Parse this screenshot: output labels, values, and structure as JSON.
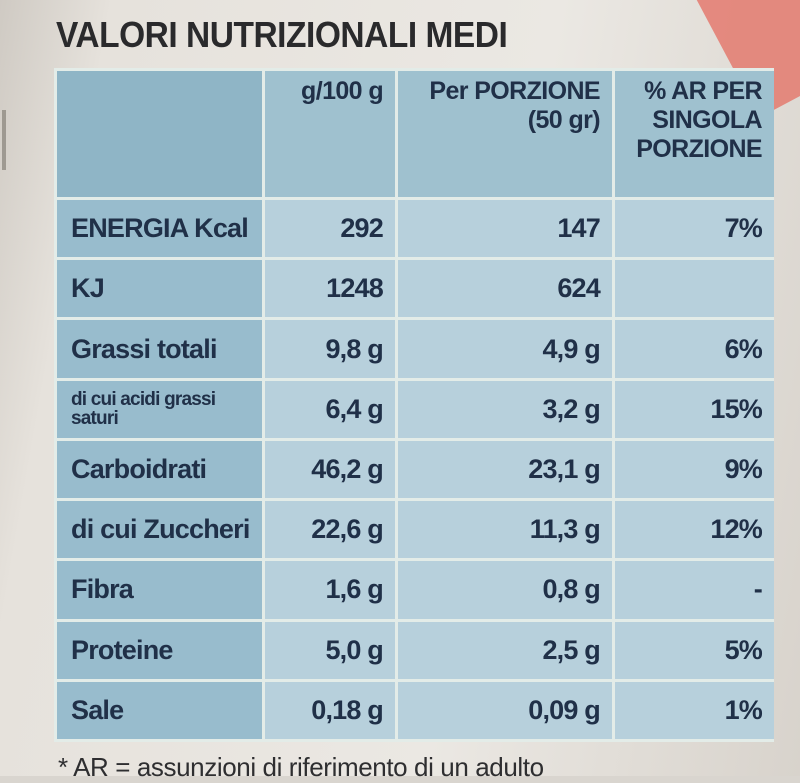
{
  "title": "VALORI NUTRIZIONALI MEDI",
  "table": {
    "headers": {
      "label": "",
      "per100g": "g/100 g",
      "portion_line1": "Per PORZIONE",
      "portion_line2": "(50 gr)",
      "ar_line1": "% AR PER",
      "ar_line2": "SINGOLA",
      "ar_line3": "PORZIONE"
    },
    "rows": [
      {
        "label": "ENERGIA Kcal",
        "per100g": "292",
        "portion": "147",
        "ar": "7%"
      },
      {
        "label": "KJ",
        "per100g": "1248",
        "portion": "624",
        "ar": ""
      },
      {
        "label": "Grassi totali",
        "per100g": "9,8 g",
        "portion": "4,9 g",
        "ar": "6%"
      },
      {
        "label": "di cui acidi grassi saturi",
        "per100g": "6,4 g",
        "portion": "3,2 g",
        "ar": "15%"
      },
      {
        "label": "Carboidrati",
        "per100g": "46,2 g",
        "portion": "23,1 g",
        "ar": "9%"
      },
      {
        "label": "di cui Zuccheri",
        "per100g": "22,6 g",
        "portion": "11,3 g",
        "ar": "12%"
      },
      {
        "label": "Fibra",
        "per100g": "1,6 g",
        "portion": "0,8 g",
        "ar": "-"
      },
      {
        "label": "Proteine",
        "per100g": "5,0 g",
        "portion": "2,5 g",
        "ar": "5%"
      },
      {
        "label": "Sale",
        "per100g": "0,18 g",
        "portion": "0,09 g",
        "ar": "1%"
      }
    ]
  },
  "footnote": "* AR = assunzioni di riferimento di un adulto",
  "colors": {
    "header_bg": "#9fc1cf",
    "label_bg": "#98bccd",
    "cell_bg": "#b7d0dc",
    "text": "#203048"
  }
}
